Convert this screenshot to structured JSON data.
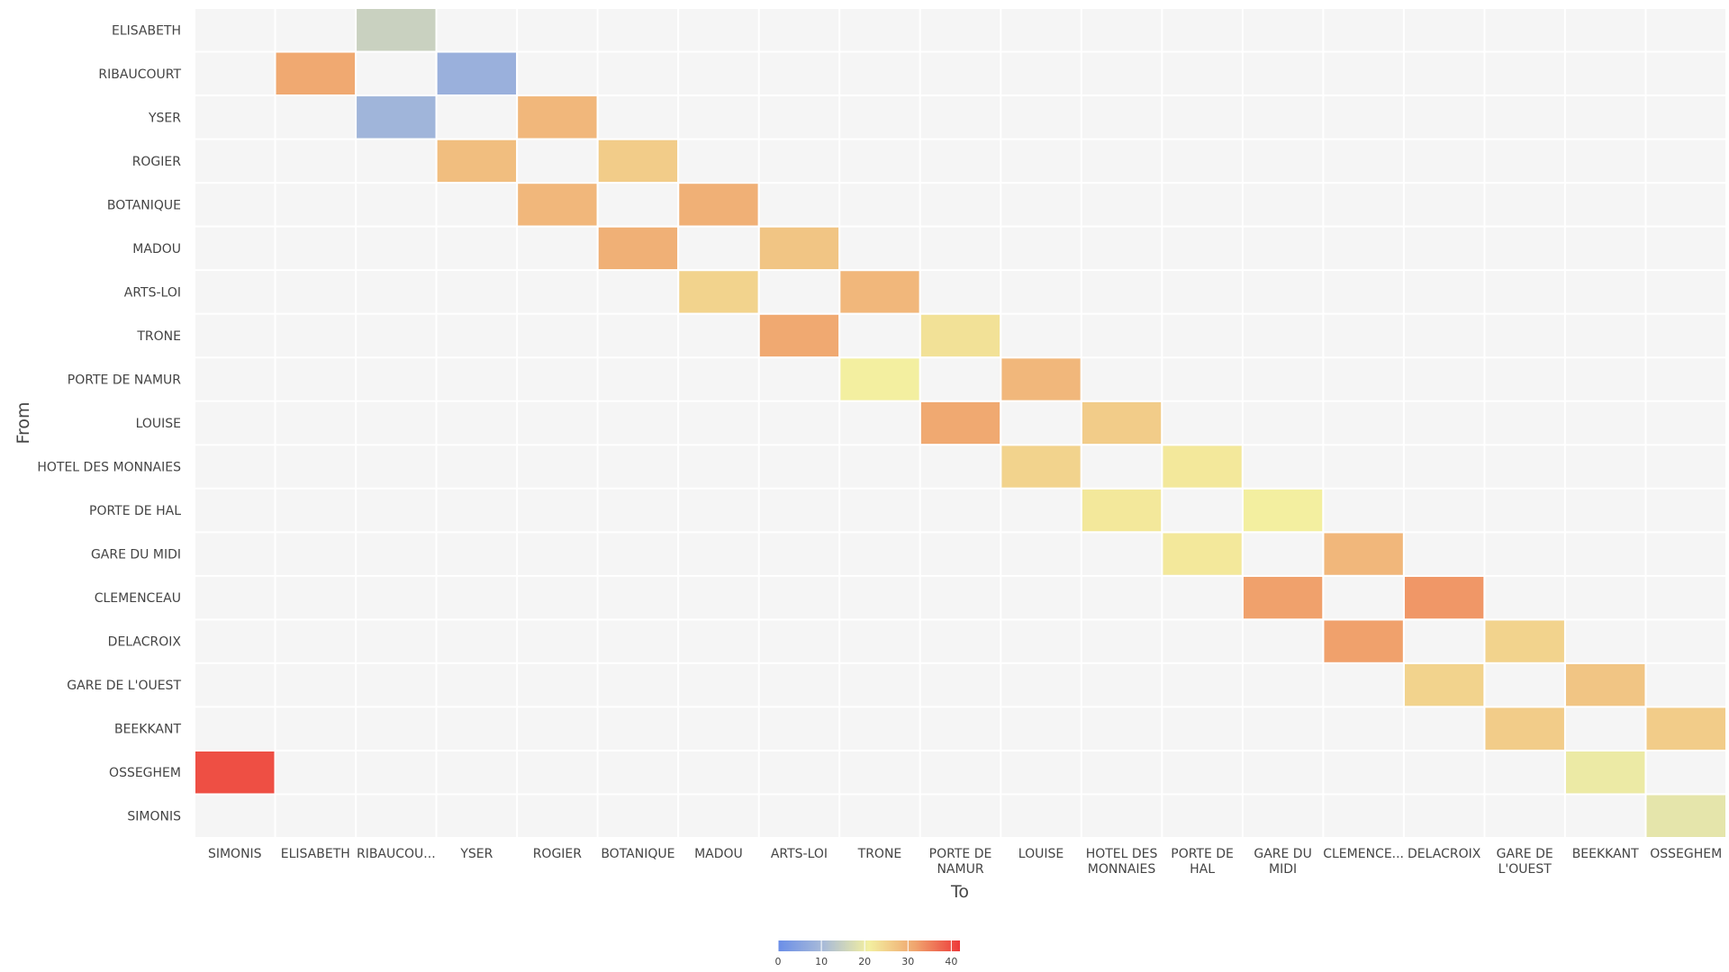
{
  "chart_data": {
    "type": "heatmap",
    "title": "",
    "xlabel": "To",
    "ylabel": "From",
    "x_categories": [
      "SIMONIS",
      "ELISABETH",
      "RIBAUCOURT",
      "YSER",
      "ROGIER",
      "BOTANIQUE",
      "MADOU",
      "ARTS-LOI",
      "TRONE",
      "PORTE DE NAMUR",
      "LOUISE",
      "HOTEL DES MONNAIES",
      "PORTE DE HAL",
      "GARE DU MIDI",
      "CLEMENCEAU",
      "DELACROIX",
      "GARE DE L'OUEST",
      "BEEKKANT",
      "OSSEGHEM"
    ],
    "x_tick_labels": [
      [
        "SIMONIS"
      ],
      [
        "ELISABETH"
      ],
      [
        "RIBAUCOU..."
      ],
      [
        "YSER"
      ],
      [
        "ROGIER"
      ],
      [
        "BOTANIQUE"
      ],
      [
        "MADOU"
      ],
      [
        "ARTS-LOI"
      ],
      [
        "TRONE"
      ],
      [
        "PORTE DE",
        "NAMUR"
      ],
      [
        "LOUISE"
      ],
      [
        "HOTEL DES",
        "MONNAIES"
      ],
      [
        "PORTE DE",
        "HAL"
      ],
      [
        "GARE DU",
        "MIDI"
      ],
      [
        "CLEMENCE..."
      ],
      [
        "DELACROIX"
      ],
      [
        "GARE DE",
        "L'OUEST"
      ],
      [
        "BEEKKANT"
      ],
      [
        "OSSEGHEM"
      ]
    ],
    "y_categories": [
      "ELISABETH",
      "RIBAUCOURT",
      "YSER",
      "ROGIER",
      "BOTANIQUE",
      "MADOU",
      "ARTS-LOI",
      "TRONE",
      "PORTE DE NAMUR",
      "LOUISE",
      "HOTEL DES MONNAIES",
      "PORTE DE HAL",
      "GARE DU MIDI",
      "CLEMENCEAU",
      "DELACROIX",
      "GARE DE L'OUEST",
      "BEEKKANT",
      "OSSEGHEM",
      "SIMONIS"
    ],
    "cells": [
      {
        "from": "ELISABETH",
        "to": "RIBAUCOURT",
        "value": 15
      },
      {
        "from": "RIBAUCOURT",
        "to": "ELISABETH",
        "value": 31
      },
      {
        "from": "RIBAUCOURT",
        "to": "YSER",
        "value": 8
      },
      {
        "from": "YSER",
        "to": "RIBAUCOURT",
        "value": 9
      },
      {
        "from": "YSER",
        "to": "ROGIER",
        "value": 29
      },
      {
        "from": "ROGIER",
        "to": "YSER",
        "value": 28
      },
      {
        "from": "ROGIER",
        "to": "BOTANIQUE",
        "value": 26
      },
      {
        "from": "BOTANIQUE",
        "to": "ROGIER",
        "value": 29
      },
      {
        "from": "BOTANIQUE",
        "to": "MADOU",
        "value": 30
      },
      {
        "from": "MADOU",
        "to": "BOTANIQUE",
        "value": 30
      },
      {
        "from": "MADOU",
        "to": "ARTS-LOI",
        "value": 27
      },
      {
        "from": "ARTS-LOI",
        "to": "MADOU",
        "value": 25
      },
      {
        "from": "ARTS-LOI",
        "to": "TRONE",
        "value": 29
      },
      {
        "from": "TRONE",
        "to": "ARTS-LOI",
        "value": 31
      },
      {
        "from": "TRONE",
        "to": "PORTE DE NAMUR",
        "value": 23
      },
      {
        "from": "PORTE DE NAMUR",
        "to": "TRONE",
        "value": 21
      },
      {
        "from": "PORTE DE NAMUR",
        "to": "LOUISE",
        "value": 29
      },
      {
        "from": "LOUISE",
        "to": "PORTE DE NAMUR",
        "value": 31
      },
      {
        "from": "LOUISE",
        "to": "HOTEL DES MONNAIES",
        "value": 26
      },
      {
        "from": "HOTEL DES MONNAIES",
        "to": "LOUISE",
        "value": 25
      },
      {
        "from": "HOTEL DES MONNAIES",
        "to": "PORTE DE HAL",
        "value": 22
      },
      {
        "from": "PORTE DE HAL",
        "to": "HOTEL DES MONNAIES",
        "value": 22
      },
      {
        "from": "PORTE DE HAL",
        "to": "GARE DU MIDI",
        "value": 21
      },
      {
        "from": "GARE DU MIDI",
        "to": "PORTE DE HAL",
        "value": 22
      },
      {
        "from": "GARE DU MIDI",
        "to": "CLEMENCEAU",
        "value": 29
      },
      {
        "from": "CLEMENCEAU",
        "to": "GARE DU MIDI",
        "value": 32
      },
      {
        "from": "CLEMENCEAU",
        "to": "DELACROIX",
        "value": 33
      },
      {
        "from": "DELACROIX",
        "to": "CLEMENCEAU",
        "value": 32
      },
      {
        "from": "DELACROIX",
        "to": "GARE DE L'OUEST",
        "value": 25
      },
      {
        "from": "GARE DE L'OUEST",
        "to": "DELACROIX",
        "value": 25
      },
      {
        "from": "GARE DE L'OUEST",
        "to": "BEEKKANT",
        "value": 27
      },
      {
        "from": "BEEKKANT",
        "to": "GARE DE L'OUEST",
        "value": 26
      },
      {
        "from": "BEEKKANT",
        "to": "OSSEGHEM",
        "value": 26
      },
      {
        "from": "OSSEGHEM",
        "to": "SIMONIS",
        "value": 40
      },
      {
        "from": "OSSEGHEM",
        "to": "BEEKKANT",
        "value": 20
      },
      {
        "from": "SIMONIS",
        "to": "OSSEGHEM",
        "value": 19
      }
    ],
    "colorscale": {
      "min": 0,
      "max": 42,
      "stops": [
        [
          0,
          "#6a8ee8"
        ],
        [
          0.25,
          "#a9bbd8"
        ],
        [
          0.5,
          "#f3efa0"
        ],
        [
          0.75,
          "#f0a66f"
        ],
        [
          1,
          "#ed3a3a"
        ]
      ],
      "tick_values": [
        0,
        10,
        20,
        30,
        40
      ],
      "tick_labels": [
        "0",
        "10",
        "20",
        "30",
        "40"
      ]
    },
    "empty_cell_color": "#f5f5f5",
    "grid": true
  }
}
